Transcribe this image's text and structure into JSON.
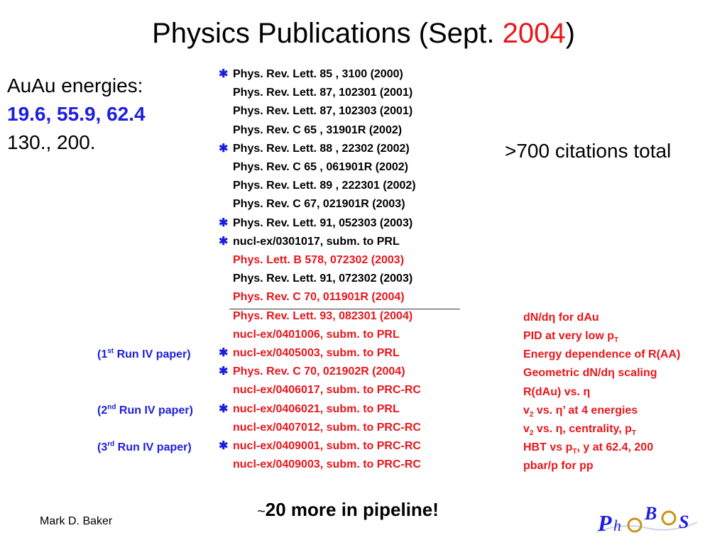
{
  "title": {
    "main": "Physics Publications (Sept. ",
    "year": "2004",
    "close": ")"
  },
  "energies": {
    "label": "AuAu energies:",
    "highlight": "19.6, 55.9, 62.4",
    "other": "130., 200."
  },
  "star_glyph": "✱",
  "publications": [
    {
      "text": "Phys. Rev. Lett. 85 , 3100 (2000)",
      "color": "black",
      "star": true
    },
    {
      "text": "Phys. Rev. Lett. 87, 102301 (2001)",
      "color": "black",
      "star": false
    },
    {
      "text": "Phys. Rev. Lett. 87, 102303 (2001)",
      "color": "black",
      "star": false
    },
    {
      "text": "Phys. Rev. C 65 , 31901R (2002)",
      "color": "black",
      "star": false
    },
    {
      "text": "Phys. Rev. Lett. 88 , 22302 (2002)",
      "color": "black",
      "star": true
    },
    {
      "text": "Phys. Rev. C 65 , 061901R (2002)",
      "color": "black",
      "star": false
    },
    {
      "text": "Phys. Rev. Lett. 89 , 222301 (2002)",
      "color": "black",
      "star": false
    },
    {
      "text": "Phys. Rev. C 67, 021901R (2003)",
      "color": "black",
      "star": false
    },
    {
      "text": "Phys. Rev. Lett. 91, 052303 (2003)",
      "color": "black",
      "star": true
    },
    {
      "text": "nucl-ex/0301017, subm. to PRL",
      "color": "black",
      "star": true
    },
    {
      "text": "Phys. Lett. B 578, 072302 (2003)",
      "color": "red",
      "star": false
    },
    {
      "text": "Phys. Rev. Lett. 91, 072302 (2003)",
      "color": "black",
      "star": false
    },
    {
      "text": "Phys. Rev. C 70, 011901R (2004)",
      "color": "red",
      "star": false
    },
    {
      "text": "Phys. Rev. Lett. 93, 082301 (2004)",
      "color": "red",
      "star": false
    },
    {
      "text": "nucl-ex/0401006, subm. to PRL",
      "color": "red",
      "star": false
    },
    {
      "text": "nucl-ex/0405003, subm. to PRL",
      "color": "red",
      "star": true
    },
    {
      "text": "Phys. Rev. C 70, 021902R (2004)",
      "color": "red",
      "star": true
    },
    {
      "text": "nucl-ex/0406017, subm. to PRC-RC",
      "color": "red",
      "star": false
    },
    {
      "text": "nucl-ex/0406021, subm. to PRL",
      "color": "red",
      "star": true
    },
    {
      "text": "nucl-ex/0407012, subm. to PRC-RC",
      "color": "red",
      "star": false
    },
    {
      "text": "nucl-ex/0409001, subm. to PRC-RC",
      "color": "red",
      "star": true
    },
    {
      "text": "nucl-ex/0409003, subm. to PRC-RC",
      "color": "red",
      "star": false
    }
  ],
  "run_labels": [
    {
      "pre": "(1",
      "sup": "st",
      "post": " Run IV paper)"
    },
    {
      "pre": "(2",
      "sup": "nd",
      "post": " Run IV paper)"
    },
    {
      "pre": "(3",
      "sup": "rd",
      "post": " Run IV paper)"
    }
  ],
  "notes": {
    "n1": {
      "a": "dN/d",
      "eta": "η",
      "b": " for dAu"
    },
    "n2": {
      "a": "PID at very low p",
      "sub": "T"
    },
    "n3": {
      "a": "Energy dependence of R(AA)"
    },
    "n4": {
      "a": "Geometric dN/d",
      "eta": "η",
      "b": " scaling"
    },
    "n5": {
      "a": "R(dAu) vs. ",
      "eta": "η"
    },
    "n6": {
      "a": "v",
      "sub": "2",
      "b": " vs. ",
      "eta": "η",
      "c": "’ at 4 energies"
    },
    "n7": {
      "a": "v",
      "sub": "2",
      "b": " vs. ",
      "eta": "η",
      "c": ", centrality, p",
      "sub2": "T"
    },
    "n8": {
      "a": "HBT vs p",
      "sub": "T",
      "b": ", y at 62.4, 200"
    },
    "n9": {
      "a": "pbar/p for pp"
    }
  },
  "citations": ">700 citations total",
  "pipeline": {
    "tilde": "~",
    "text": "20 more in pipeline!"
  },
  "author": "Mark D. Baker",
  "logo": {
    "letters": [
      "P",
      "h",
      "O",
      "B",
      "O",
      "S"
    ]
  },
  "colors": {
    "red": "#e8161b",
    "blue": "#1d1de0",
    "black": "#000000"
  }
}
